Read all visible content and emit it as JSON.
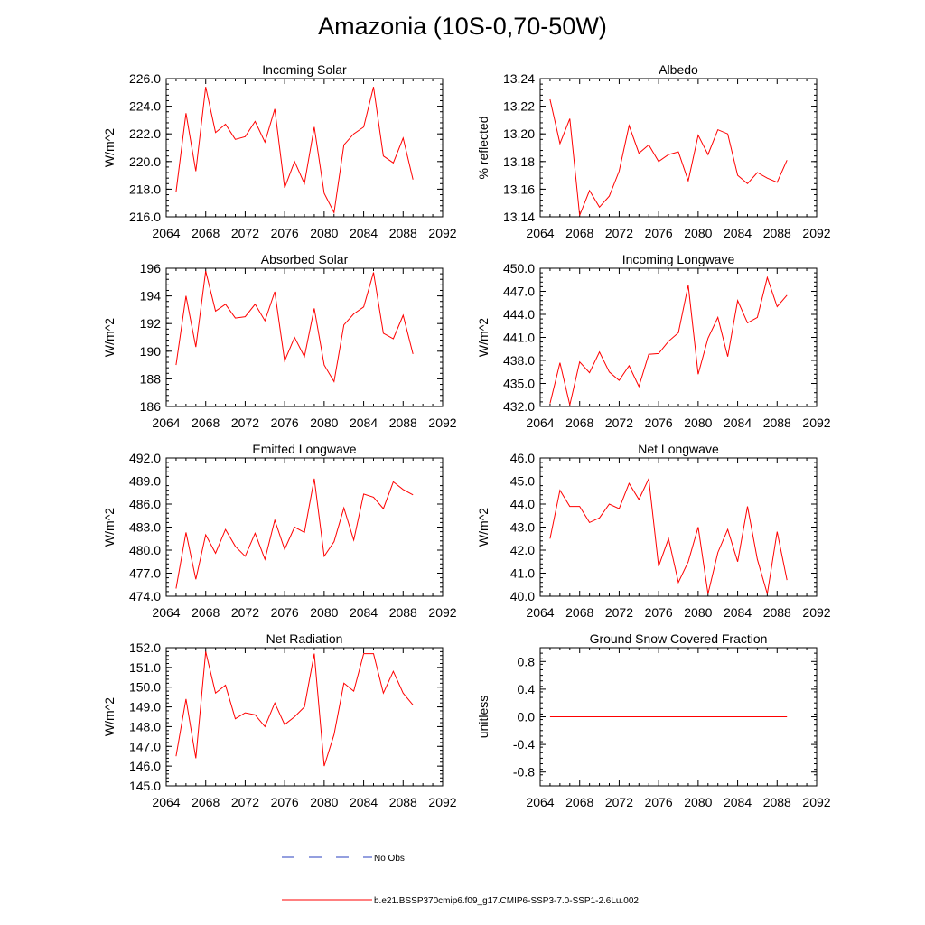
{
  "title": "Amazonia (10S-0,70-50W)",
  "colors": {
    "model": "#ff0000",
    "obs": "#2a3fbf"
  },
  "legend": {
    "obs_label": "No Obs",
    "model_label": "b.e21.BSSP370cmip6.f09_g17.CMIP6-SSP3-7.0-SSP1-2.6Lu.002"
  },
  "chart_data": [
    {
      "type": "line",
      "title": "Incoming Solar",
      "ylabel": "W/m^2",
      "xlim": [
        2064,
        2092
      ],
      "ylim": [
        216.0,
        226.0
      ],
      "yticks": [
        216.0,
        218.0,
        220.0,
        222.0,
        224.0,
        226.0
      ],
      "yfmt": 1,
      "xticks": [
        2064,
        2068,
        2072,
        2076,
        2080,
        2084,
        2088,
        2092
      ],
      "x": [
        2065,
        2066,
        2067,
        2068,
        2069,
        2070,
        2071,
        2072,
        2073,
        2074,
        2075,
        2076,
        2077,
        2078,
        2079,
        2080,
        2081,
        2082,
        2083,
        2084,
        2085,
        2086,
        2087,
        2088,
        2089
      ],
      "series": [
        {
          "values": [
            217.8,
            223.5,
            219.3,
            225.4,
            222.1,
            222.7,
            221.6,
            221.8,
            222.9,
            221.4,
            223.8,
            218.1,
            220.0,
            218.4,
            222.5,
            217.7,
            216.3,
            221.2,
            222.0,
            222.5,
            225.4,
            220.4,
            219.9,
            221.7,
            218.7
          ]
        }
      ]
    },
    {
      "type": "line",
      "title": "Albedo",
      "ylabel": "% reflected",
      "xlim": [
        2064,
        2092
      ],
      "ylim": [
        13.14,
        13.24
      ],
      "yticks": [
        13.14,
        13.16,
        13.18,
        13.2,
        13.22,
        13.24
      ],
      "yfmt": 2,
      "xticks": [
        2064,
        2068,
        2072,
        2076,
        2080,
        2084,
        2088,
        2092
      ],
      "x": [
        2065,
        2066,
        2067,
        2068,
        2069,
        2070,
        2071,
        2072,
        2073,
        2074,
        2075,
        2076,
        2077,
        2078,
        2079,
        2080,
        2081,
        2082,
        2083,
        2084,
        2085,
        2086,
        2087,
        2088,
        2089
      ],
      "series": [
        {
          "values": [
            13.225,
            13.193,
            13.211,
            13.141,
            13.159,
            13.147,
            13.155,
            13.173,
            13.206,
            13.186,
            13.192,
            13.18,
            13.185,
            13.187,
            13.166,
            13.199,
            13.185,
            13.203,
            13.2,
            13.17,
            13.164,
            13.172,
            13.168,
            13.165,
            13.181
          ]
        }
      ]
    },
    {
      "type": "line",
      "title": "Absorbed Solar",
      "ylabel": "W/m^2",
      "xlim": [
        2064,
        2092
      ],
      "ylim": [
        186,
        196
      ],
      "yticks": [
        186,
        188,
        190,
        192,
        194,
        196
      ],
      "yfmt": 0,
      "xticks": [
        2064,
        2068,
        2072,
        2076,
        2080,
        2084,
        2088,
        2092
      ],
      "x": [
        2065,
        2066,
        2067,
        2068,
        2069,
        2070,
        2071,
        2072,
        2073,
        2074,
        2075,
        2076,
        2077,
        2078,
        2079,
        2080,
        2081,
        2082,
        2083,
        2084,
        2085,
        2086,
        2087,
        2088,
        2089
      ],
      "series": [
        {
          "values": [
            189.0,
            194.0,
            190.3,
            195.8,
            192.9,
            193.4,
            192.4,
            192.5,
            193.4,
            192.2,
            194.3,
            189.3,
            191.0,
            189.6,
            193.1,
            189.0,
            187.8,
            191.9,
            192.7,
            193.2,
            195.7,
            191.3,
            190.9,
            192.6,
            189.8
          ]
        }
      ]
    },
    {
      "type": "line",
      "title": "Incoming Longwave",
      "ylabel": "W/m^2",
      "xlim": [
        2064,
        2092
      ],
      "ylim": [
        432.0,
        450.0
      ],
      "yticks": [
        432.0,
        435.0,
        438.0,
        441.0,
        444.0,
        447.0,
        450.0
      ],
      "yfmt": 1,
      "xticks": [
        2064,
        2068,
        2072,
        2076,
        2080,
        2084,
        2088,
        2092
      ],
      "x": [
        2065,
        2066,
        2067,
        2068,
        2069,
        2070,
        2071,
        2072,
        2073,
        2074,
        2075,
        2076,
        2077,
        2078,
        2079,
        2080,
        2081,
        2082,
        2083,
        2084,
        2085,
        2086,
        2087,
        2088,
        2089
      ],
      "series": [
        {
          "values": [
            432.4,
            437.7,
            432.2,
            437.8,
            436.4,
            439.1,
            436.5,
            435.4,
            437.3,
            434.6,
            438.8,
            438.9,
            440.5,
            441.6,
            447.8,
            436.2,
            440.9,
            443.6,
            438.5,
            445.8,
            442.9,
            443.6,
            448.8,
            445.0,
            446.5
          ]
        }
      ]
    },
    {
      "type": "line",
      "title": "Emitted Longwave",
      "ylabel": "W/m^2",
      "xlim": [
        2064,
        2092
      ],
      "ylim": [
        474.0,
        492.0
      ],
      "yticks": [
        474.0,
        477.0,
        480.0,
        483.0,
        486.0,
        489.0,
        492.0
      ],
      "yfmt": 1,
      "xticks": [
        2064,
        2068,
        2072,
        2076,
        2080,
        2084,
        2088,
        2092
      ],
      "x": [
        2065,
        2066,
        2067,
        2068,
        2069,
        2070,
        2071,
        2072,
        2073,
        2074,
        2075,
        2076,
        2077,
        2078,
        2079,
        2080,
        2081,
        2082,
        2083,
        2084,
        2085,
        2086,
        2087,
        2088,
        2089
      ],
      "series": [
        {
          "values": [
            475.0,
            482.3,
            476.2,
            482.0,
            479.6,
            482.7,
            480.5,
            479.2,
            482.2,
            478.8,
            483.9,
            480.1,
            483.0,
            482.3,
            489.3,
            479.2,
            481.1,
            485.5,
            481.3,
            487.3,
            486.9,
            485.4,
            488.9,
            487.9,
            487.2
          ]
        }
      ]
    },
    {
      "type": "line",
      "title": "Net Longwave",
      "ylabel": "W/m^2",
      "xlim": [
        2064,
        2092
      ],
      "ylim": [
        40.0,
        46.0
      ],
      "yticks": [
        40.0,
        41.0,
        42.0,
        43.0,
        44.0,
        45.0,
        46.0
      ],
      "yfmt": 1,
      "xticks": [
        2064,
        2068,
        2072,
        2076,
        2080,
        2084,
        2088,
        2092
      ],
      "x": [
        2065,
        2066,
        2067,
        2068,
        2069,
        2070,
        2071,
        2072,
        2073,
        2074,
        2075,
        2076,
        2077,
        2078,
        2079,
        2080,
        2081,
        2082,
        2083,
        2084,
        2085,
        2086,
        2087,
        2088,
        2089
      ],
      "series": [
        {
          "values": [
            42.5,
            44.6,
            43.9,
            43.9,
            43.2,
            43.4,
            44.0,
            43.8,
            44.9,
            44.2,
            45.1,
            41.3,
            42.5,
            40.6,
            41.5,
            43.0,
            40.1,
            41.9,
            42.9,
            41.5,
            43.9,
            41.6,
            40.1,
            42.8,
            40.7
          ]
        }
      ]
    },
    {
      "type": "line",
      "title": "Net Radiation",
      "ylabel": "W/m^2",
      "xlim": [
        2064,
        2092
      ],
      "ylim": [
        145.0,
        152.0
      ],
      "yticks": [
        145.0,
        146.0,
        147.0,
        148.0,
        149.0,
        150.0,
        151.0,
        152.0
      ],
      "yfmt": 1,
      "xticks": [
        2064,
        2068,
        2072,
        2076,
        2080,
        2084,
        2088,
        2092
      ],
      "x": [
        2065,
        2066,
        2067,
        2068,
        2069,
        2070,
        2071,
        2072,
        2073,
        2074,
        2075,
        2076,
        2077,
        2078,
        2079,
        2080,
        2081,
        2082,
        2083,
        2084,
        2085,
        2086,
        2087,
        2088,
        2089
      ],
      "series": [
        {
          "values": [
            146.5,
            149.4,
            146.4,
            151.8,
            149.7,
            150.1,
            148.4,
            148.7,
            148.6,
            148.0,
            149.2,
            148.1,
            148.5,
            149.0,
            151.7,
            146.0,
            147.6,
            150.2,
            149.8,
            151.7,
            151.7,
            149.7,
            150.8,
            149.7,
            149.1
          ]
        }
      ]
    },
    {
      "type": "line",
      "title": "Ground Snow Covered Fraction",
      "ylabel": "unitless",
      "xlim": [
        2064,
        2092
      ],
      "ylim": [
        -1.0,
        1.0
      ],
      "yticks": [
        -0.8,
        -0.4,
        0.0,
        0.4,
        0.8
      ],
      "yfmt": 1,
      "xticks": [
        2064,
        2068,
        2072,
        2076,
        2080,
        2084,
        2088,
        2092
      ],
      "x": [
        2065,
        2066,
        2067,
        2068,
        2069,
        2070,
        2071,
        2072,
        2073,
        2074,
        2075,
        2076,
        2077,
        2078,
        2079,
        2080,
        2081,
        2082,
        2083,
        2084,
        2085,
        2086,
        2087,
        2088,
        2089
      ],
      "series": [
        {
          "values": [
            0,
            0,
            0,
            0,
            0,
            0,
            0,
            0,
            0,
            0,
            0,
            0,
            0,
            0,
            0,
            0,
            0,
            0,
            0,
            0,
            0,
            0,
            0,
            0,
            0
          ]
        }
      ]
    }
  ]
}
